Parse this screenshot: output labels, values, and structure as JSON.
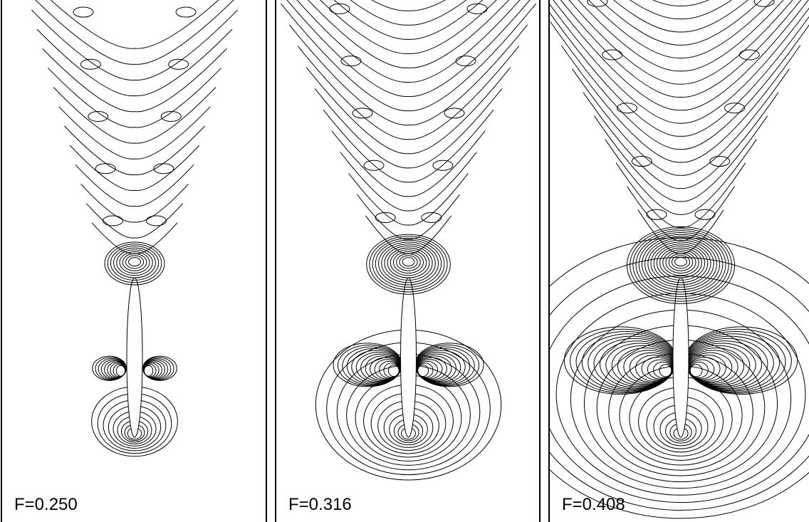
{
  "panels": [
    {
      "label": "F=0.250"
    },
    {
      "label": "F=0.316"
    },
    {
      "label": "F=0.408"
    }
  ]
}
